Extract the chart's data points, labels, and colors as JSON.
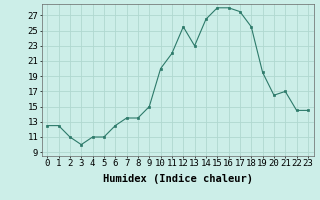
{
  "x": [
    0,
    1,
    2,
    3,
    4,
    5,
    6,
    7,
    8,
    9,
    10,
    11,
    12,
    13,
    14,
    15,
    16,
    17,
    18,
    19,
    20,
    21,
    22,
    23
  ],
  "y": [
    12.5,
    12.5,
    11.0,
    10.0,
    11.0,
    11.0,
    12.5,
    13.5,
    13.5,
    15.0,
    20.0,
    22.0,
    25.5,
    23.0,
    26.5,
    28.0,
    28.0,
    27.5,
    25.5,
    19.5,
    16.5,
    17.0,
    14.5,
    14.5
  ],
  "line_color": "#2d7a6a",
  "marker_color": "#2d7a6a",
  "bg_color": "#cceee8",
  "grid_color": "#b0d8d0",
  "xlabel": "Humidex (Indice chaleur)",
  "xlabel_fontsize": 7.5,
  "tick_fontsize": 6.5,
  "xlim": [
    -0.5,
    23.5
  ],
  "ylim": [
    8.5,
    28.5
  ],
  "yticks": [
    9,
    11,
    13,
    15,
    17,
    19,
    21,
    23,
    25,
    27
  ],
  "xtick_labels": [
    "0",
    "1",
    "2",
    "3",
    "4",
    "5",
    "6",
    "7",
    "8",
    "9",
    "10",
    "11",
    "12",
    "13",
    "14",
    "15",
    "16",
    "17",
    "18",
    "19",
    "20",
    "21",
    "22",
    "23"
  ]
}
